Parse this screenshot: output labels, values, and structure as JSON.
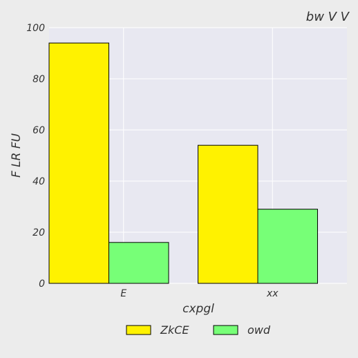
{
  "chart_data": {
    "type": "bar",
    "title": "bw  V V",
    "xlabel": "cxpgl",
    "ylabel": "F LR FU",
    "categories": [
      "E",
      "xx"
    ],
    "series": [
      {
        "name": "ZkCE",
        "values": [
          94,
          54
        ],
        "color": "#fff200"
      },
      {
        "name": "owd",
        "values": [
          16,
          29
        ],
        "color": "#77ff77"
      }
    ],
    "ylim": [
      0,
      100
    ],
    "yticks": [
      0,
      20,
      40,
      60,
      80,
      100
    ],
    "grid": true,
    "legend_position": "bottom"
  }
}
